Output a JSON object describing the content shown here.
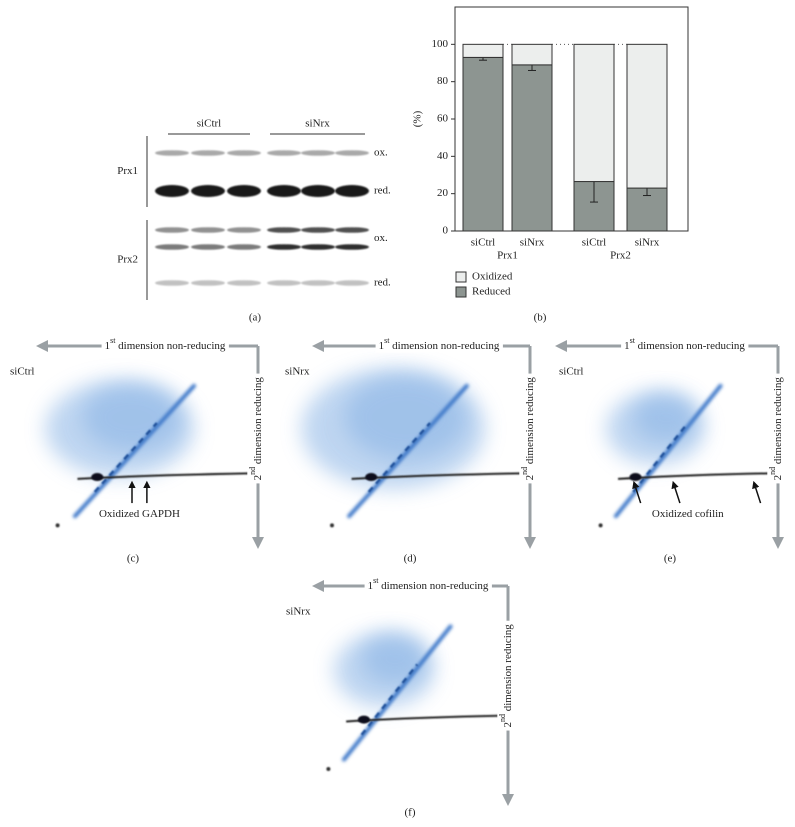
{
  "chart_data": {
    "type": "bar",
    "stacked": true,
    "panel_label": "(b)",
    "y_label": "(%)",
    "categories": [
      "siCtrl",
      "siNrx",
      "siCtrl",
      "siNrx"
    ],
    "groups": [
      "Prx1",
      "Prx2"
    ],
    "series": [
      {
        "name": "Oxidized",
        "color": "#eceeed",
        "values": [
          7,
          11,
          73.5,
          77
        ]
      },
      {
        "name": "Reduced",
        "color": "#8d9591",
        "values": [
          93,
          89,
          26.5,
          23
        ],
        "errors": [
          1.5,
          3,
          11,
          4
        ]
      }
    ],
    "ylim": [
      0,
      120
    ],
    "yticks": [
      0,
      20,
      40,
      60,
      80,
      100
    ]
  },
  "blot": {
    "panel_label": "(a)",
    "groups": [
      "siCtrl",
      "siNrx"
    ],
    "proteins": [
      {
        "name": "Prx1",
        "bands": [
          "ox.",
          "red."
        ]
      },
      {
        "name": "Prx2",
        "bands": [
          "ox.",
          "red."
        ]
      }
    ]
  },
  "gels": [
    {
      "panel_label": "(c)",
      "sample": "siCtrl",
      "x_axis": {
        "ordinal": "1",
        "suffix": "st",
        "text": " dimension non-reducing"
      },
      "y_axis": {
        "ordinal": "2",
        "suffix": "nd",
        "text": " dimension reducing"
      },
      "annotation": "Oxidized GAPDH"
    },
    {
      "panel_label": "(d)",
      "sample": "siNrx",
      "x_axis": {
        "ordinal": "1",
        "suffix": "st",
        "text": " dimension non-reducing"
      },
      "y_axis": {
        "ordinal": "2",
        "suffix": "nd",
        "text": " dimension reducing"
      }
    },
    {
      "panel_label": "(e)",
      "sample": "siCtrl",
      "x_axis": {
        "ordinal": "1",
        "suffix": "st",
        "text": " dimension non-reducing"
      },
      "y_axis": {
        "ordinal": "2",
        "suffix": "nd",
        "text": " dimension reducing"
      },
      "annotation": "Oxidized cofilin"
    },
    {
      "panel_label": "(f)",
      "sample": "siNrx",
      "x_axis": {
        "ordinal": "1",
        "suffix": "st",
        "text": " dimension non-reducing"
      },
      "y_axis": {
        "ordinal": "2",
        "suffix": "nd",
        "text": " dimension reducing"
      }
    }
  ]
}
